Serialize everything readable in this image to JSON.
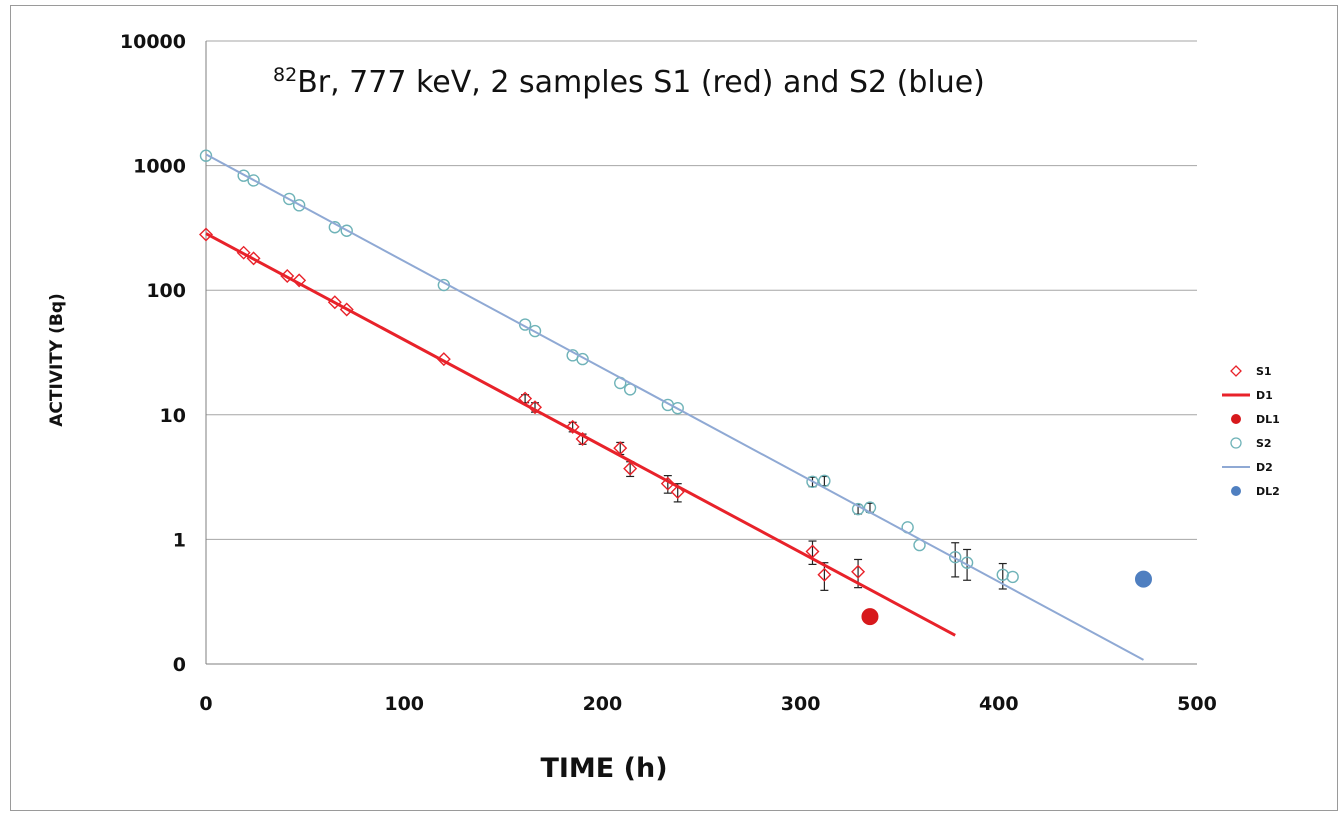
{
  "chart_data": {
    "type": "scatter",
    "title": "",
    "annotation": {
      "superscript": "82",
      "text": "Br, 777 keV, 2 samples S1 (red) and S2 (blue)"
    },
    "xlabel": "TIME (h)",
    "ylabel": "ACTIVITY (Bq)",
    "xlim": [
      0,
      500
    ],
    "ylim": [
      0.1,
      10000
    ],
    "yscale": "log",
    "grid": "horizontal",
    "legend_position": "right",
    "x_ticks": [
      0,
      100,
      200,
      300,
      400,
      500
    ],
    "x_tick_labels": [
      "0",
      "100",
      "200",
      "300",
      "400",
      "500"
    ],
    "y_ticks": [
      0.1,
      1,
      10,
      100,
      1000,
      10000
    ],
    "y_tick_labels": [
      "0",
      "1",
      "10",
      "100",
      "1000",
      "10000"
    ],
    "series": [
      {
        "name": "S1",
        "kind": "marker",
        "marker": "diamond-open",
        "color": "#e8222a",
        "x": [
          0,
          19,
          24,
          41,
          47,
          65,
          71,
          120,
          161,
          166,
          185,
          190,
          209,
          214,
          233,
          238,
          306,
          312,
          329
        ],
        "y": [
          280,
          200,
          180,
          130,
          120,
          80,
          70,
          28,
          13.5,
          11.5,
          8.0,
          6.4,
          5.4,
          3.7,
          2.8,
          2.4,
          0.8,
          0.52,
          0.55
        ],
        "error": [
          0,
          0,
          0,
          0,
          0,
          0,
          0,
          0,
          1.0,
          1.0,
          0.7,
          0.6,
          0.6,
          0.5,
          0.45,
          0.4,
          0.17,
          0.13,
          0.14
        ]
      },
      {
        "name": "D1",
        "kind": "line",
        "color": "#e8222a",
        "x": [
          0,
          378
        ],
        "y": [
          285,
          0.17
        ]
      },
      {
        "name": "DL1",
        "kind": "marker",
        "marker": "circle-filled",
        "color": "#d7191c",
        "x": [
          335
        ],
        "y": [
          0.24
        ]
      },
      {
        "name": "S2",
        "kind": "marker",
        "marker": "circle-open",
        "color": "#6fb3b8",
        "x": [
          0,
          19,
          24,
          42,
          47,
          65,
          71,
          120,
          161,
          166,
          185,
          190,
          209,
          214,
          233,
          238,
          306,
          312,
          329,
          335,
          354,
          360,
          378,
          384,
          402,
          407
        ],
        "y": [
          1200,
          830,
          760,
          540,
          480,
          320,
          300,
          110,
          53,
          47,
          30,
          28,
          18,
          16,
          12,
          11.3,
          2.9,
          2.95,
          1.75,
          1.8,
          1.25,
          0.9,
          0.72,
          0.65,
          0.52,
          0.5
        ],
        "error": [
          0,
          0,
          0,
          0,
          0,
          0,
          0,
          0,
          0,
          0,
          0,
          0,
          0,
          0,
          0,
          0,
          0.25,
          0.25,
          0.15,
          0.15,
          0,
          0,
          0.22,
          0.18,
          0.12,
          0
        ]
      },
      {
        "name": "D2",
        "kind": "line",
        "color": "#8fa9d4",
        "x": [
          0,
          473
        ],
        "y": [
          1230,
          0.108
        ]
      },
      {
        "name": "DL2",
        "kind": "marker",
        "marker": "circle-filled",
        "color": "#4f7fc0",
        "x": [
          473
        ],
        "y": [
          0.48
        ]
      }
    ]
  }
}
